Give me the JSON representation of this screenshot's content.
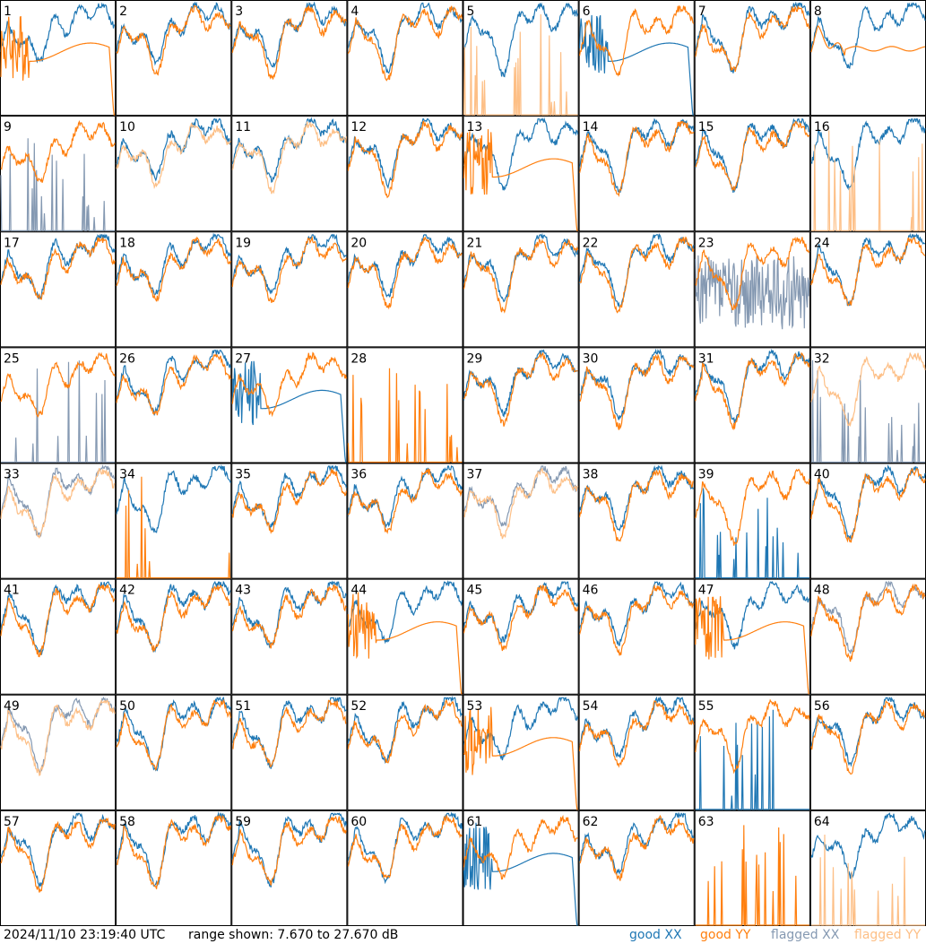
{
  "footer": {
    "timestamp": "2024/11/10 23:19:40 UTC",
    "range_text": "range shown: 7.670 to 27.670 dB"
  },
  "legend": {
    "good_xx": "good XX",
    "good_yy": "good YY",
    "flagged_xx": "flagged XX",
    "flagged_yy": "flagged YY"
  },
  "colors": {
    "good_xx": "#1f77b4",
    "good_yy": "#ff7f0e",
    "flagged_xx": "#8599b2",
    "flagged_yy": "#fdbf86"
  },
  "chart_data": {
    "type": "line",
    "layout": "8x8 small multiples, one panel per antenna",
    "ylim_db": [
      7.67,
      27.67
    ],
    "panels": [
      {
        "id": "1",
        "xx": "good",
        "yy": "good",
        "yy_style": "decay"
      },
      {
        "id": "2",
        "xx": "good",
        "yy": "good"
      },
      {
        "id": "3",
        "xx": "good",
        "yy": "good"
      },
      {
        "id": "4",
        "xx": "good",
        "yy": "good"
      },
      {
        "id": "5",
        "xx": "good",
        "yy": "flagged",
        "yy_style": "spikes"
      },
      {
        "id": "6",
        "xx": "good",
        "yy": "good",
        "xx_style": "decay"
      },
      {
        "id": "7",
        "xx": "good",
        "yy": "good"
      },
      {
        "id": "8",
        "xx": "good",
        "yy": "good",
        "yy_style": "flat"
      },
      {
        "id": "9",
        "xx": "flagged",
        "yy": "good",
        "xx_style": "spikes"
      },
      {
        "id": "10",
        "xx": "good",
        "yy": "flagged"
      },
      {
        "id": "11",
        "xx": "good",
        "yy": "flagged"
      },
      {
        "id": "12",
        "xx": "good",
        "yy": "good"
      },
      {
        "id": "13",
        "xx": "good",
        "yy": "good",
        "yy_style": "decay"
      },
      {
        "id": "14",
        "xx": "good",
        "yy": "good"
      },
      {
        "id": "15",
        "xx": "good",
        "yy": "good"
      },
      {
        "id": "16",
        "xx": "good",
        "yy": "flagged",
        "yy_style": "spikes"
      },
      {
        "id": "17",
        "xx": "good",
        "yy": "good"
      },
      {
        "id": "18",
        "xx": "good",
        "yy": "good"
      },
      {
        "id": "19",
        "xx": "good",
        "yy": "good"
      },
      {
        "id": "20",
        "xx": "good",
        "yy": "good"
      },
      {
        "id": "21",
        "xx": "good",
        "yy": "good"
      },
      {
        "id": "22",
        "xx": "good",
        "yy": "good"
      },
      {
        "id": "23",
        "xx": "flagged",
        "yy": "good",
        "xx_style": "noisy"
      },
      {
        "id": "24",
        "xx": "good",
        "yy": "good"
      },
      {
        "id": "25",
        "xx": "flagged",
        "yy": "good",
        "xx_style": "spikes"
      },
      {
        "id": "26",
        "xx": "good",
        "yy": "good"
      },
      {
        "id": "27",
        "xx": "good",
        "yy": "good",
        "xx_style": "decay"
      },
      {
        "id": "28",
        "xx": "none",
        "yy": "good",
        "yy_style": "spikes"
      },
      {
        "id": "29",
        "xx": "good",
        "yy": "good"
      },
      {
        "id": "30",
        "xx": "good",
        "yy": "good"
      },
      {
        "id": "31",
        "xx": "good",
        "yy": "good"
      },
      {
        "id": "32",
        "xx": "flagged",
        "yy": "flagged",
        "xx_style": "spikes"
      },
      {
        "id": "33",
        "xx": "flagged",
        "yy": "flagged"
      },
      {
        "id": "34",
        "xx": "good",
        "yy": "good",
        "yy_style": "spikes"
      },
      {
        "id": "35",
        "xx": "good",
        "yy": "good"
      },
      {
        "id": "36",
        "xx": "good",
        "yy": "good"
      },
      {
        "id": "37",
        "xx": "flagged",
        "yy": "flagged"
      },
      {
        "id": "38",
        "xx": "good",
        "yy": "good"
      },
      {
        "id": "39",
        "xx": "good",
        "yy": "good",
        "xx_style": "spikes"
      },
      {
        "id": "40",
        "xx": "good",
        "yy": "good"
      },
      {
        "id": "41",
        "xx": "good",
        "yy": "good"
      },
      {
        "id": "42",
        "xx": "good",
        "yy": "good"
      },
      {
        "id": "43",
        "xx": "good",
        "yy": "good"
      },
      {
        "id": "44",
        "xx": "good",
        "yy": "good",
        "yy_style": "decay"
      },
      {
        "id": "45",
        "xx": "good",
        "yy": "good"
      },
      {
        "id": "46",
        "xx": "good",
        "yy": "good"
      },
      {
        "id": "47",
        "xx": "good",
        "yy": "good",
        "yy_style": "decay"
      },
      {
        "id": "48",
        "xx": "flagged",
        "yy": "good"
      },
      {
        "id": "49",
        "xx": "flagged",
        "yy": "flagged"
      },
      {
        "id": "50",
        "xx": "good",
        "yy": "good"
      },
      {
        "id": "51",
        "xx": "good",
        "yy": "good"
      },
      {
        "id": "52",
        "xx": "good",
        "yy": "good"
      },
      {
        "id": "53",
        "xx": "good",
        "yy": "good",
        "yy_style": "decay"
      },
      {
        "id": "54",
        "xx": "good",
        "yy": "good"
      },
      {
        "id": "55",
        "xx": "good",
        "yy": "good",
        "xx_style": "spikes"
      },
      {
        "id": "56",
        "xx": "good",
        "yy": "good"
      },
      {
        "id": "57",
        "xx": "good",
        "yy": "good"
      },
      {
        "id": "58",
        "xx": "good",
        "yy": "good"
      },
      {
        "id": "59",
        "xx": "good",
        "yy": "good"
      },
      {
        "id": "60",
        "xx": "good",
        "yy": "good"
      },
      {
        "id": "61",
        "xx": "good",
        "yy": "good",
        "xx_style": "decay"
      },
      {
        "id": "62",
        "xx": "good",
        "yy": "good"
      },
      {
        "id": "63",
        "xx": "none",
        "yy": "good",
        "yy_style": "spikes"
      },
      {
        "id": "64",
        "xx": "good",
        "yy": "flagged",
        "yy_style": "spikes"
      }
    ]
  }
}
